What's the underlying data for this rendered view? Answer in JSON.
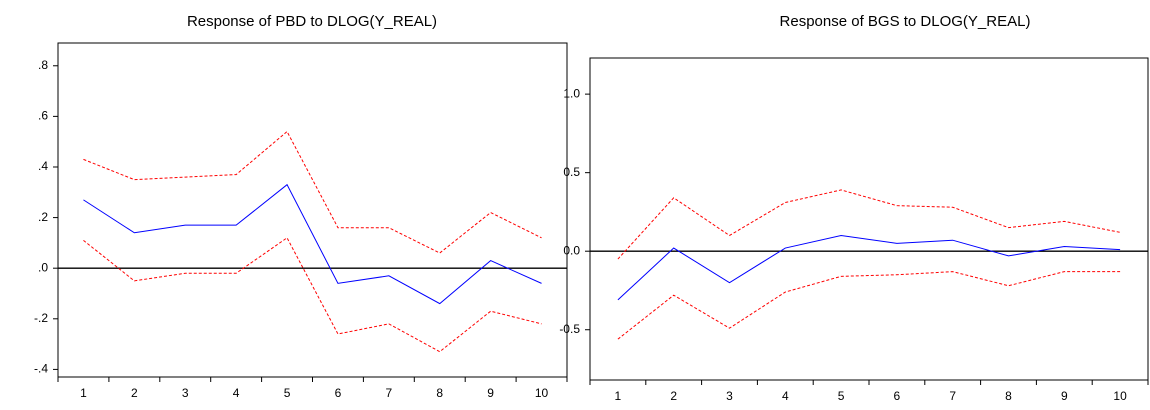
{
  "chart_data": [
    {
      "type": "line",
      "title": "Response of PBD to DLOG(Y_REAL)",
      "categories": [
        "1",
        "2",
        "3",
        "4",
        "5",
        "6",
        "7",
        "8",
        "9",
        "10"
      ],
      "ylim": [
        -0.43,
        0.89
      ],
      "yticks": [
        {
          "value": -0.4,
          "label": "-.4"
        },
        {
          "value": -0.2,
          "label": "-.2"
        },
        {
          "value": 0,
          "label": ".0"
        },
        {
          "value": 0.2,
          "label": ".2"
        },
        {
          "value": 0.4,
          "label": ".4"
        },
        {
          "value": 0.6,
          "label": ".6"
        },
        {
          "value": 0.8,
          "label": ".8"
        }
      ],
      "series": [
        {
          "color": "#ff0000",
          "values": [
            0.43,
            0.35,
            0.36,
            0.37,
            0.54,
            0.16,
            0.16,
            0.06,
            0.22,
            0.12
          ]
        },
        {
          "color": "#0000ff",
          "values": [
            0.27,
            0.14,
            0.17,
            0.17,
            0.33,
            -0.06,
            -0.03,
            -0.14,
            0.03,
            -0.06
          ]
        },
        {
          "color": "#ff0000",
          "values": [
            0.11,
            -0.05,
            -0.02,
            -0.02,
            0.12,
            -0.26,
            -0.22,
            -0.33,
            -0.17,
            -0.22
          ]
        }
      ]
    },
    {
      "type": "line",
      "title": "Response of BGS to DLOG(Y_REAL)",
      "categories": [
        "1",
        "2",
        "3",
        "4",
        "5",
        "6",
        "7",
        "8",
        "9",
        "10"
      ],
      "ylim": [
        -0.82,
        1.23
      ],
      "yticks": [
        -0.5,
        {
          "value": 0,
          "label": "0.0"
        },
        0.5,
        {
          "value": 1,
          "label": "1.0"
        }
      ],
      "series": [
        {
          "color": "#ff0000",
          "values": [
            -0.05,
            0.34,
            0.1,
            0.31,
            0.39,
            0.29,
            0.28,
            0.15,
            0.19,
            0.12
          ]
        },
        {
          "color": "#0000ff",
          "values": [
            -0.31,
            0.02,
            -0.2,
            0.02,
            0.1,
            0.05,
            0.07,
            -0.03,
            0.03,
            0.01
          ]
        },
        {
          "color": "#ff0000",
          "values": [
            -0.56,
            -0.28,
            -0.49,
            -0.26,
            -0.16,
            -0.15,
            -0.13,
            -0.22,
            -0.13,
            -0.13
          ]
        }
      ]
    }
  ]
}
